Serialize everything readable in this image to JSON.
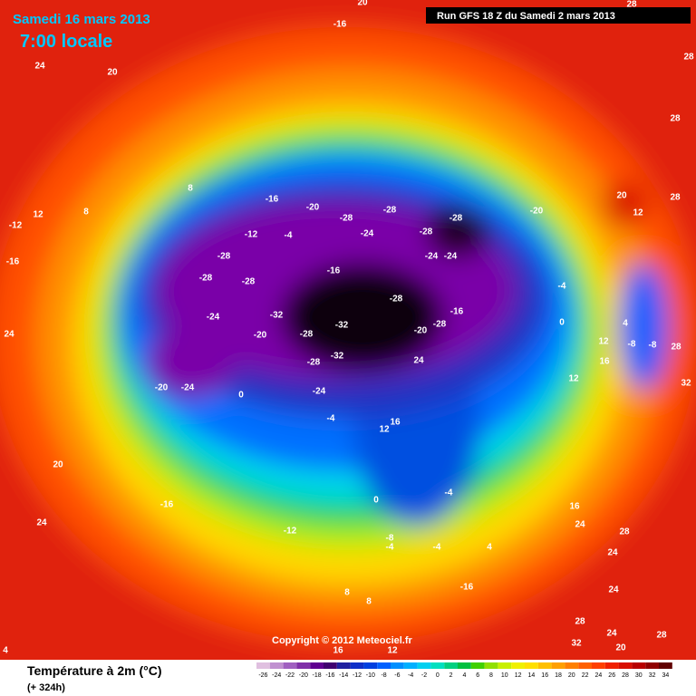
{
  "header": {
    "date": "Samedi 16 mars 2013",
    "time": "7:00 locale",
    "run": "Run GFS 18 Z du Samedi 2 mars 2013"
  },
  "legend": {
    "title": "Température à 2m (°C)",
    "lead": "(+ 324h)",
    "scale": [
      -26,
      -24,
      -22,
      -20,
      -18,
      -16,
      -14,
      -12,
      -10,
      -8,
      -6,
      -4,
      -2,
      0,
      2,
      4,
      6,
      8,
      10,
      12,
      14,
      16,
      18,
      20,
      22,
      24,
      26,
      28,
      30,
      32,
      34
    ]
  },
  "copyright": "Copyright © 2012 Meteociel.fr",
  "map_labels": [
    "20",
    "28",
    "-16",
    "24",
    "20",
    "28",
    "28",
    "8",
    "-16",
    "-20",
    "-28",
    "-28",
    "-28",
    "-20",
    "-12",
    "-4",
    "-24",
    "-28",
    "-28",
    "-28",
    "-28",
    "-16",
    "-24",
    "-24",
    "-28",
    "-16",
    "-24",
    "-32",
    "-32",
    "-28",
    "-20",
    "-28",
    "-20",
    "-28",
    "-32",
    "24",
    "-24",
    "-20",
    "-24",
    "0",
    "-4",
    "16",
    "12",
    "-4",
    "0",
    "12",
    "4",
    "-8",
    "-8",
    "28",
    "32",
    "16",
    "12",
    "20",
    "12",
    "28",
    "-12",
    "12",
    "8",
    "-16",
    "24",
    "20",
    "-16",
    "24",
    "-12",
    "-4",
    "0",
    "-8",
    "-4",
    "-4",
    "4",
    "-16",
    "8",
    "8",
    "16",
    "24",
    "24",
    "24",
    "28",
    "28",
    "24",
    "28",
    "32",
    "20",
    "24",
    "12",
    "16",
    "4"
  ]
}
